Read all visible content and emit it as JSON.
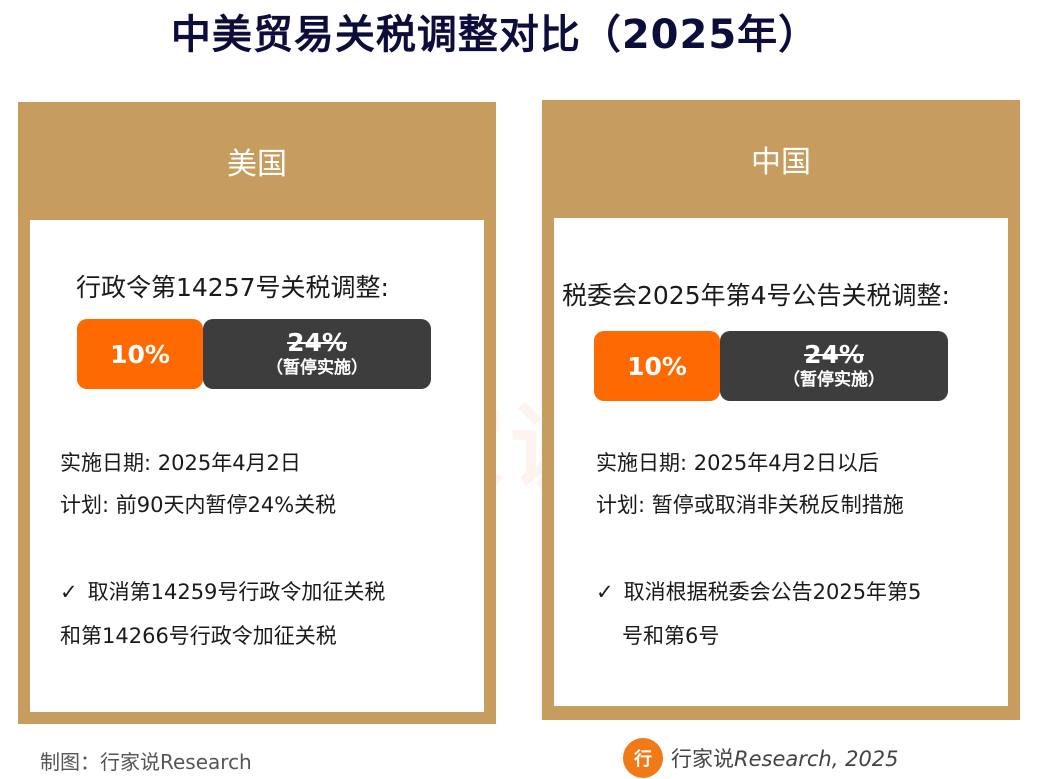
{
  "title": "中美贸易关税调整对比（2025年）",
  "watermark_text": "行家说储能",
  "colors": {
    "panel": "#c69c5f",
    "new_rate": "#ff6a00",
    "old_rate": "#3d3d3d",
    "title": "#0d0d3b"
  },
  "us": {
    "header": "美国",
    "subtitle": "行政令第14257号关税调整:",
    "new_rate": "10%",
    "old_rate": "24%",
    "old_rate_note": "（暂停实施）",
    "date_line": "实施日期: 2025年4月2日",
    "plan_line": "计划: 前90天内暂停24%关税",
    "check_line1": "取消第14259号行政令加征关税",
    "check_line2": "和第14266号行政令加征关税"
  },
  "cn": {
    "header": "中国",
    "subtitle": "税委会2025年第4号公告关税调整:",
    "new_rate": "10%",
    "old_rate": "24%",
    "old_rate_note": "（暂停实施）",
    "date_line": "实施日期: 2025年4月2日以后",
    "plan_line": "计划: 暂停或取消非关税反制措施",
    "check_line1": "取消根据税委会公告2025年第5",
    "check_line2": "号和第6号"
  },
  "footer": {
    "credit": "制图：行家说Research",
    "brand_logo_text": "行",
    "brand_cn": "行家说",
    "brand_en": "Research, 2025"
  },
  "icons": {
    "check": "checkmark-icon",
    "brand": "hangjiashuo-logo-icon"
  }
}
